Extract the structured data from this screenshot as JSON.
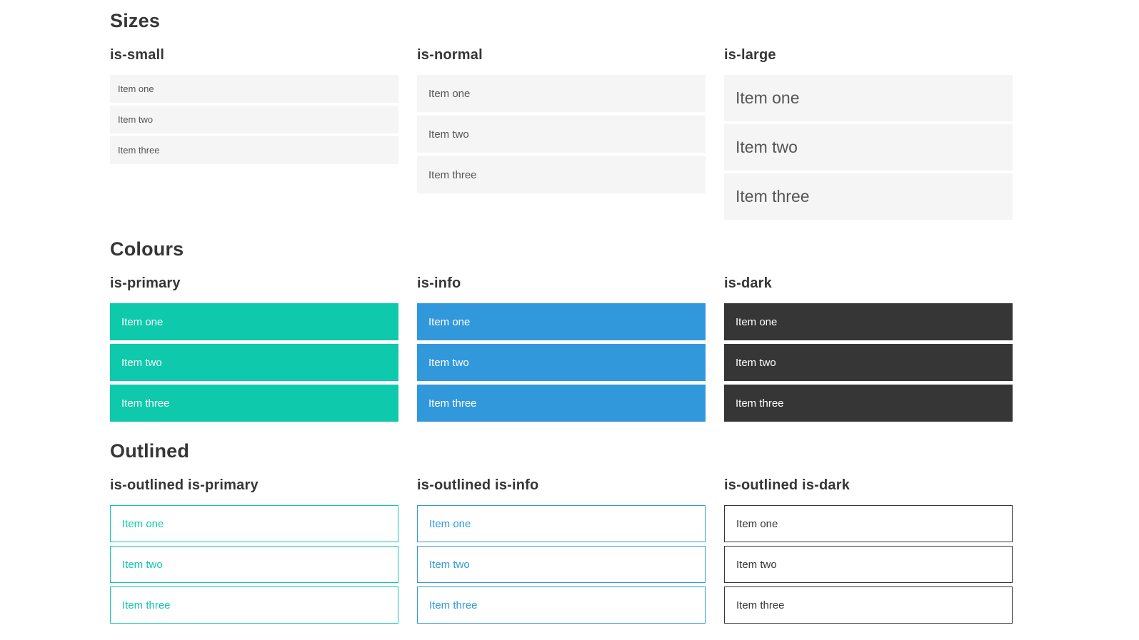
{
  "page": {
    "background": "#ffffff"
  },
  "colors": {
    "primary": "#0ec9ab",
    "info": "#3298dc",
    "dark": "#363636",
    "item_background": "#f5f5f5",
    "item_text": "#555555",
    "heading_text": "#363636",
    "on_color_text": "#ffffff"
  },
  "sections": [
    {
      "title": "Sizes",
      "columns": [
        {
          "heading": "is-small",
          "items": [
            "Item one",
            "Item two",
            "Item three"
          ]
        },
        {
          "heading": "is-normal",
          "items": [
            "Item one",
            "Item two",
            "Item three"
          ]
        },
        {
          "heading": "is-large",
          "items": [
            "Item one",
            "Item two",
            "Item three"
          ]
        }
      ]
    },
    {
      "title": "Colours",
      "columns": [
        {
          "heading": "is-primary",
          "items": [
            "Item one",
            "Item two",
            "Item three"
          ]
        },
        {
          "heading": "is-info",
          "items": [
            "Item one",
            "Item two",
            "Item three"
          ]
        },
        {
          "heading": "is-dark",
          "items": [
            "Item one",
            "Item two",
            "Item three"
          ]
        }
      ]
    },
    {
      "title": "Outlined",
      "columns": [
        {
          "heading": "is-outlined is-primary",
          "items": [
            "Item one",
            "Item two",
            "Item three"
          ]
        },
        {
          "heading": "is-outlined is-info",
          "items": [
            "Item one",
            "Item two",
            "Item three"
          ]
        },
        {
          "heading": "is-outlined is-dark",
          "items": [
            "Item one",
            "Item two",
            "Item three"
          ]
        }
      ]
    }
  ]
}
